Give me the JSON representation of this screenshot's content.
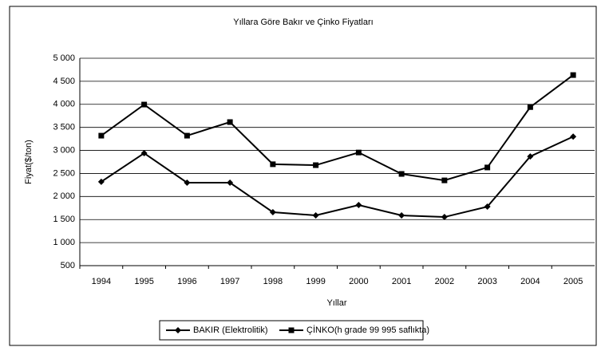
{
  "chart_data": {
    "type": "line",
    "title": "Yıllara Göre Bakır ve Çinko Fiyatları",
    "y_label": "Fiyat($/ton)",
    "x_label": "Yıllar",
    "categories": [
      "1994",
      "1995",
      "1996",
      "1997",
      "1998",
      "1999",
      "2000",
      "2001",
      "2002",
      "2003",
      "2004",
      "2005"
    ],
    "series": [
      {
        "name": "BAKIR (Elektrolitik)",
        "color": "#000000",
        "marker": "diamond",
        "values": [
          2320,
          2940,
          2300,
          2300,
          1660,
          1590,
          1815,
          1590,
          1555,
          1780,
          2870,
          3300
        ]
      },
      {
        "name": "ÇİNKO(h grade 99 995 saflıkta)",
        "color": "#000000",
        "marker": "square",
        "values": [
          3320,
          3995,
          3320,
          3615,
          2700,
          2680,
          2955,
          2490,
          2350,
          2630,
          3940,
          4635
        ]
      }
    ],
    "ylim": [
      500,
      5000
    ],
    "yticks": [
      500,
      {
        "value": 1000,
        "label": "1 000"
      },
      {
        "value": 1500,
        "label": "1 500"
      },
      {
        "value": 2000,
        "label": "2 000"
      },
      {
        "value": 2500,
        "label": "2 500"
      },
      {
        "value": 3000,
        "label": "3 000"
      },
      {
        "value": 3500,
        "label": "3 500"
      },
      {
        "value": 4000,
        "label": "4 000"
      },
      {
        "value": 4500,
        "label": "4 500"
      },
      {
        "value": 5000,
        "label": "5 000"
      }
    ],
    "grid": true,
    "legend": "bottom"
  }
}
